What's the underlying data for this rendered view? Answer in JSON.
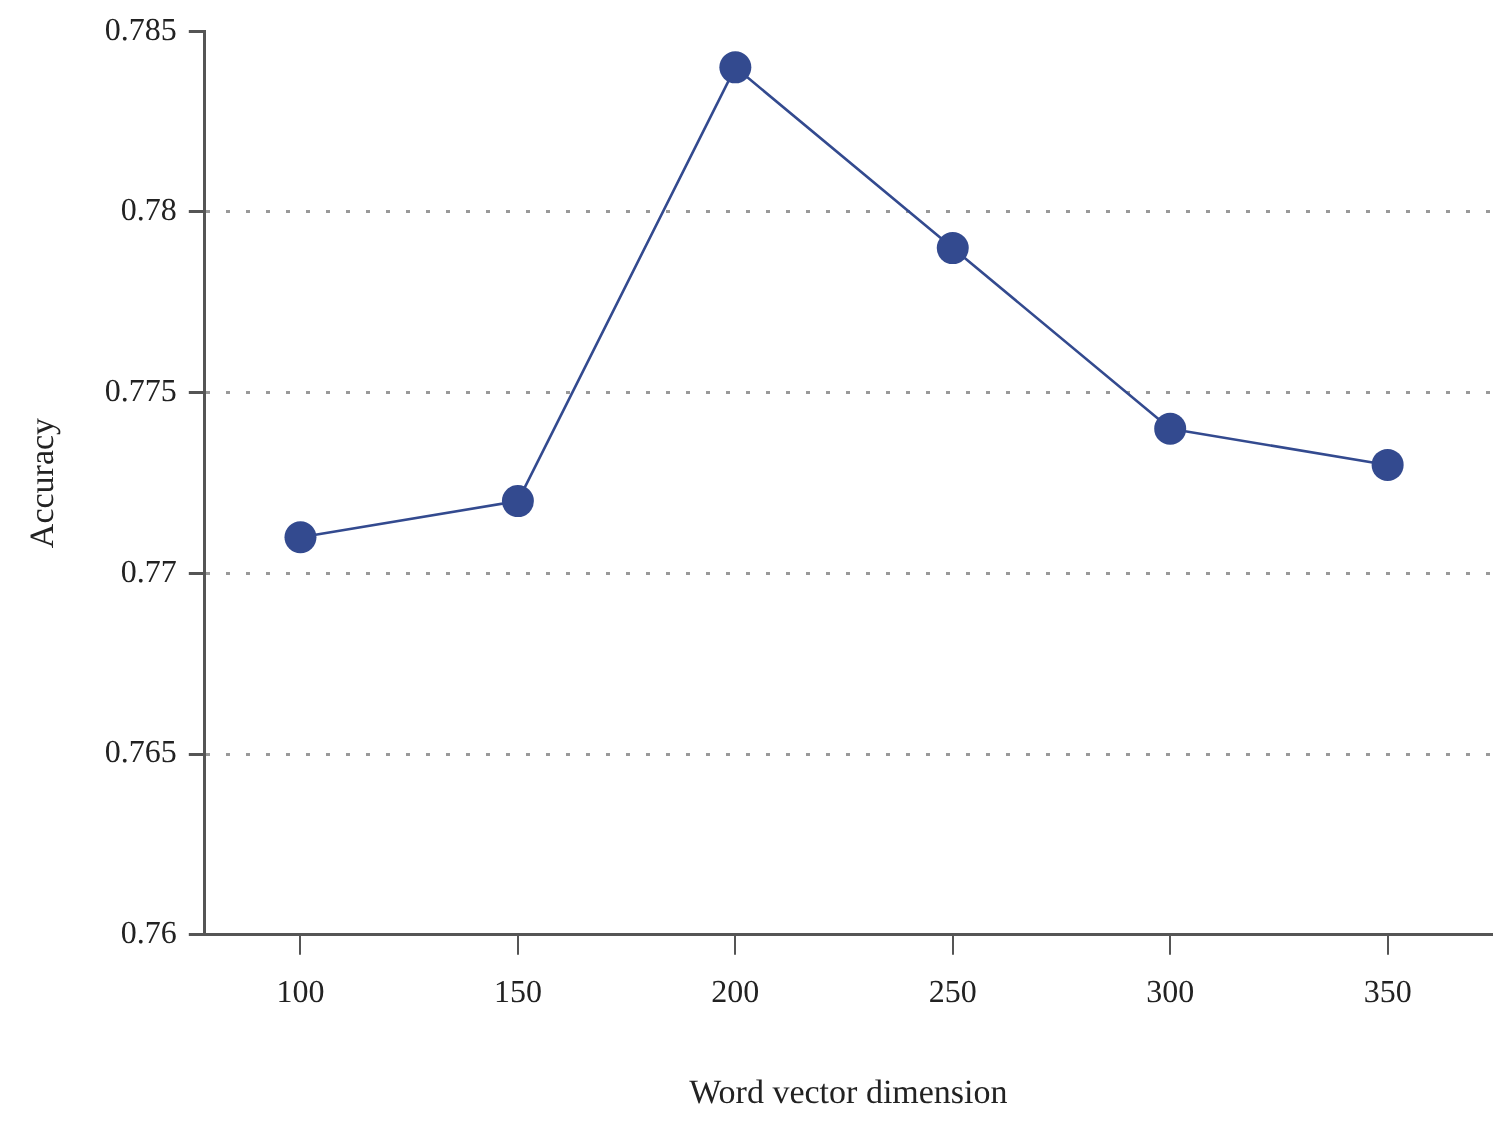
{
  "chart_data": {
    "type": "line",
    "xlabel": "Word vector dimension",
    "ylabel": "Accuracy",
    "x": [
      100,
      150,
      200,
      250,
      300,
      350
    ],
    "series": [
      {
        "color": "#334a8f",
        "values": [
          0.771,
          0.772,
          0.784,
          0.779,
          0.774,
          0.773
        ]
      }
    ],
    "xlim": [
      78,
      374
    ],
    "xticks": [
      100,
      150,
      200,
      250,
      300,
      350
    ],
    "ylim": [
      0.76,
      0.785
    ],
    "yticks": [
      0.76,
      0.765,
      0.77,
      0.775,
      0.78,
      0.785
    ],
    "grid": "y",
    "marker": "circle",
    "line_style": "solid",
    "legend": false
  }
}
